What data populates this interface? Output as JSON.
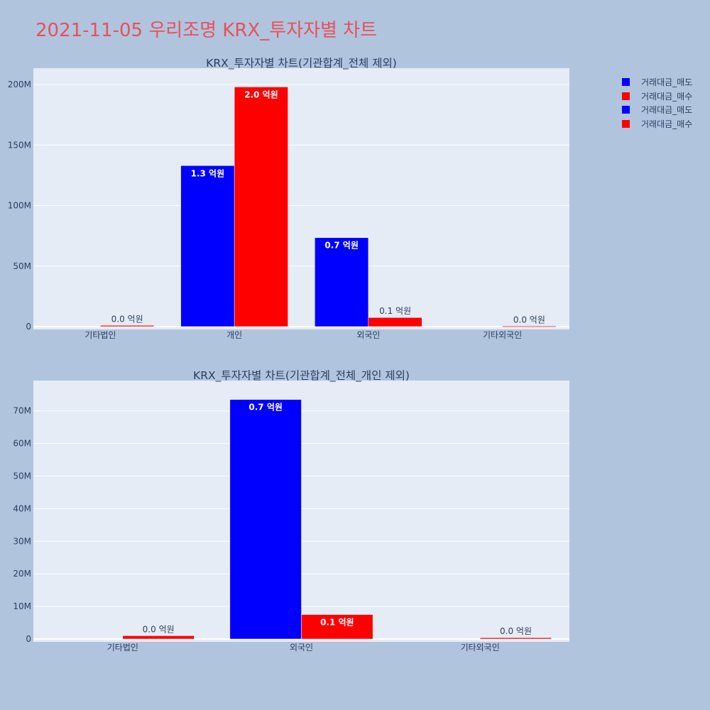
{
  "title": "2021-11-05 우리조명 KRX_투자자별 차트",
  "colors": {
    "sell": "#0000ff",
    "buy": "#ff0000",
    "plot_bg": "#e5ecf6",
    "paper_bg": "#b0c4de",
    "title": "#e8505b"
  },
  "legend": [
    {
      "name": "거래대금_매도",
      "color": "#0000ff"
    },
    {
      "name": "거래대금_매수",
      "color": "#ff0000"
    },
    {
      "name": "거래대금_매도",
      "color": "#0000ff"
    },
    {
      "name": "거래대금_매수",
      "color": "#ff0000"
    }
  ],
  "chart_data": [
    {
      "type": "bar",
      "title": "KRX_투자자별 차트(기관합계_전체 제외)",
      "categories": [
        "기타법인",
        "개인",
        "외국인",
        "기타외국인"
      ],
      "ylim": [
        0,
        210000000
      ],
      "yticks": [
        0,
        50000000,
        100000000,
        150000000,
        200000000
      ],
      "ytick_labels": [
        "0",
        "50M",
        "100M",
        "150M",
        "200M"
      ],
      "grid": true,
      "series": [
        {
          "name": "거래대금_매도",
          "color": "#0000ff",
          "values": [
            0,
            133000000,
            73500000,
            0
          ],
          "labels": [
            "",
            "1.3 억원",
            "0.7 억원",
            ""
          ]
        },
        {
          "name": "거래대금_매수",
          "color": "#ff0000",
          "values": [
            1000000,
            198000000,
            7500000,
            400000
          ],
          "labels": [
            "0.0 억원",
            "2.0 억원",
            "0.1 억원",
            "0.0 억원"
          ]
        }
      ]
    },
    {
      "type": "bar",
      "title": "KRX_투자자별 차트(기관합계_전체_개인 제외)",
      "categories": [
        "기타법인",
        "외국인",
        "기타외국인"
      ],
      "ylim": [
        0,
        78000000
      ],
      "yticks": [
        0,
        10000000,
        20000000,
        30000000,
        40000000,
        50000000,
        60000000,
        70000000
      ],
      "ytick_labels": [
        "0",
        "10M",
        "20M",
        "30M",
        "40M",
        "50M",
        "60M",
        "70M"
      ],
      "grid": true,
      "series": [
        {
          "name": "거래대금_매도",
          "color": "#0000ff",
          "values": [
            0,
            73500000,
            0
          ],
          "labels": [
            "",
            "0.7 억원",
            ""
          ]
        },
        {
          "name": "거래대금_매수",
          "color": "#ff0000",
          "values": [
            1000000,
            7500000,
            400000
          ],
          "labels": [
            "0.0 억원",
            "0.1 억원",
            "0.0 억원"
          ]
        }
      ]
    }
  ]
}
